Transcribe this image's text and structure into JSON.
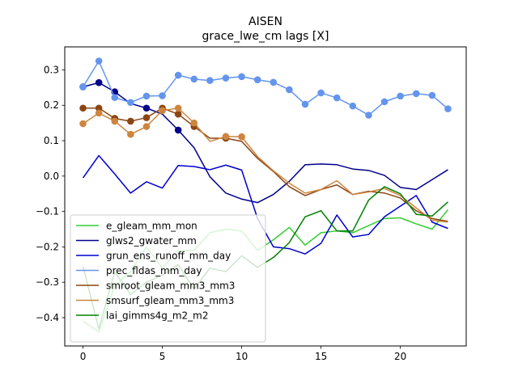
{
  "chart_data": {
    "type": "line",
    "title": "AISEN",
    "subtitle": "grace_lwe_cm lags [X]",
    "xlabel": "",
    "ylabel": "",
    "xlim": [
      -1.15,
      24.15
    ],
    "ylim": [
      -0.48,
      0.365
    ],
    "x_ticks": [
      0,
      5,
      10,
      15,
      20
    ],
    "y_ticks": [
      -0.4,
      -0.3,
      -0.2,
      -0.1,
      0.0,
      0.1,
      0.2,
      0.3
    ],
    "y_tick_labels": [
      "−0.4",
      "−0.3",
      "−0.2",
      "−0.1",
      "0.0",
      "0.1",
      "0.2",
      "0.3"
    ],
    "legend_position": "lower-left",
    "grid": false,
    "x": [
      0,
      1,
      2,
      3,
      4,
      5,
      6,
      7,
      8,
      9,
      10,
      11,
      12,
      13,
      14,
      15,
      16,
      17,
      18,
      19,
      20,
      21,
      22,
      23
    ],
    "series": [
      {
        "name": "e_gleam_mm_mon",
        "color": "#32cd32",
        "values": [
          -0.41,
          -0.44,
          -0.31,
          -0.27,
          -0.2,
          -0.26,
          -0.21,
          -0.21,
          -0.16,
          -0.15,
          -0.155,
          -0.21,
          -0.18,
          -0.145,
          -0.195,
          -0.16,
          -0.155,
          -0.16,
          -0.14,
          -0.12,
          -0.118,
          -0.135,
          -0.15,
          -0.095
        ],
        "markers": []
      },
      {
        "name": "glws2_gwater_mm",
        "color": "#00008b",
        "values": [
          0.252,
          0.264,
          0.238,
          0.205,
          0.192,
          0.175,
          0.13,
          0.08,
          -0.002,
          -0.048,
          -0.065,
          -0.075,
          -0.052,
          -0.015,
          0.032,
          0.034,
          0.032,
          0.02,
          0.016,
          0.002,
          -0.032,
          -0.038,
          -0.01,
          0.018
        ],
        "markers": [
          0,
          1,
          2,
          4,
          6
        ]
      },
      {
        "name": "grun_ens_runoff_mm_day",
        "color": "#0000cd",
        "values": [
          -0.005,
          0.058,
          0.006,
          -0.048,
          -0.016,
          -0.034,
          0.03,
          0.027,
          0.018,
          0.031,
          0.017,
          -0.12,
          -0.2,
          -0.205,
          -0.22,
          -0.19,
          -0.11,
          -0.172,
          -0.165,
          -0.115,
          -0.085,
          -0.055,
          -0.13,
          -0.148
        ],
        "markers": []
      },
      {
        "name": "prec_fldas_mm_day",
        "color": "#6495ed",
        "values": [
          0.252,
          0.325,
          0.222,
          0.208,
          0.226,
          0.227,
          0.285,
          0.274,
          0.27,
          0.277,
          0.281,
          0.272,
          0.265,
          0.244,
          0.203,
          0.235,
          0.221,
          0.198,
          0.172,
          0.21,
          0.226,
          0.233,
          0.228,
          0.19
        ],
        "markers": [
          0,
          1,
          2,
          3,
          4,
          5,
          6,
          7,
          8,
          9,
          10,
          11,
          12,
          13,
          14,
          15,
          16,
          17,
          18,
          19,
          20,
          21,
          22,
          23
        ]
      },
      {
        "name": "smroot_gleam_mm3_mm3",
        "color": "#8b4513",
        "values": [
          0.192,
          0.192,
          0.163,
          0.155,
          0.165,
          0.192,
          0.175,
          0.14,
          0.107,
          0.107,
          0.098,
          0.05,
          0.013,
          -0.03,
          -0.055,
          -0.038,
          -0.025,
          -0.052,
          -0.043,
          -0.048,
          -0.062,
          -0.098,
          -0.12,
          -0.128
        ],
        "markers": [
          0,
          1,
          2,
          3,
          4,
          5,
          6,
          7,
          9
        ]
      },
      {
        "name": "smsurf_gleam_mm3_mm3",
        "color": "#cd853f",
        "values": [
          0.148,
          0.178,
          0.155,
          0.118,
          0.14,
          0.185,
          0.192,
          0.15,
          0.098,
          0.112,
          0.111,
          0.055,
          0.015,
          -0.02,
          -0.048,
          -0.038,
          -0.013,
          -0.052,
          -0.045,
          -0.035,
          -0.055,
          -0.09,
          -0.125,
          -0.13
        ],
        "markers": [
          0,
          1,
          2,
          3,
          4,
          5,
          6,
          7,
          9,
          10
        ]
      },
      {
        "name": "lai_gimms4g_m2_m2",
        "color": "#008000",
        "values": [
          -0.255,
          -0.432,
          -0.27,
          -0.335,
          -0.3,
          -0.28,
          -0.25,
          -0.32,
          -0.26,
          -0.27,
          -0.225,
          -0.258,
          -0.23,
          -0.188,
          -0.115,
          -0.098,
          -0.155,
          -0.155,
          -0.068,
          -0.03,
          -0.05,
          -0.108,
          -0.113,
          -0.073
        ],
        "markers": []
      }
    ]
  }
}
